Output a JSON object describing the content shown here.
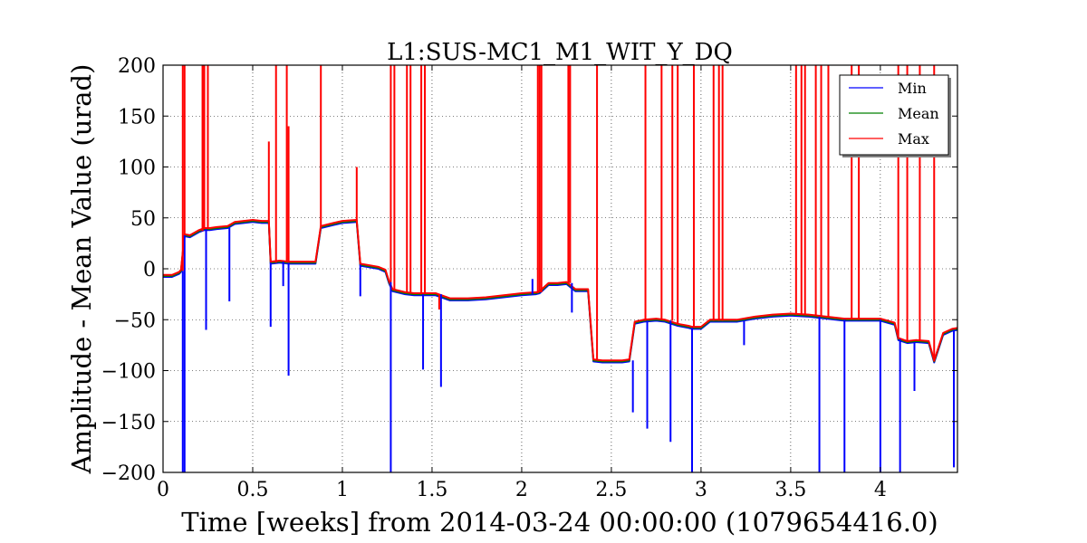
{
  "chart_data": {
    "type": "line",
    "title": "L1:SUS-MC1_M1_WIT_Y_DQ",
    "xlabel": "Time [weeks] from 2014-03-24 00:00:00 (1079654416.0)",
    "ylabel": "Amplitude - Mean Value (urad)",
    "xlim": [
      0,
      4.43
    ],
    "ylim": [
      -200,
      200
    ],
    "xticks": [
      0,
      0.5,
      1,
      1.5,
      2,
      2.5,
      3,
      3.5,
      4
    ],
    "xtick_labels": [
      "0",
      "0.5",
      "1",
      "1.5",
      "2",
      "2.5",
      "3",
      "3.5",
      "4"
    ],
    "yticks": [
      -200,
      -150,
      -100,
      -50,
      0,
      50,
      100,
      150,
      200
    ],
    "ytick_labels": [
      "−200",
      "−150",
      "−100",
      "−50",
      "0",
      "50",
      "100",
      "150",
      "200"
    ],
    "grid": true,
    "legend_position": "top-right",
    "series": [
      {
        "name": "Min",
        "color": "#0000ff",
        "x": [
          0,
          0.05,
          0.09,
          0.1,
          0.12,
          0.15,
          0.2,
          0.23,
          0.26,
          0.3,
          0.36,
          0.4,
          0.5,
          0.55,
          0.59,
          0.6,
          0.65,
          0.7,
          0.8,
          0.85,
          0.88,
          0.95,
          1.0,
          1.08,
          1.1,
          1.2,
          1.24,
          1.26,
          1.28,
          1.35,
          1.4,
          1.45,
          1.52,
          1.6,
          1.7,
          1.8,
          1.9,
          2.0,
          2.08,
          2.1,
          2.15,
          2.2,
          2.25,
          2.3,
          2.37,
          2.4,
          2.45,
          2.5,
          2.56,
          2.6,
          2.63,
          2.68,
          2.75,
          2.8,
          2.87,
          2.93,
          2.95,
          3.0,
          3.05,
          3.12,
          3.2,
          3.3,
          3.4,
          3.5,
          3.6,
          3.65,
          3.75,
          3.8,
          3.9,
          4.0,
          4.08,
          4.1,
          4.15,
          4.2,
          4.27,
          4.3,
          4.35,
          4.4,
          4.43
        ],
        "y": [
          -8,
          -8,
          -5,
          -3,
          32,
          31,
          36,
          38,
          38,
          39,
          40,
          44,
          46,
          45,
          45,
          5,
          6,
          5,
          5,
          5,
          40,
          43,
          45,
          46,
          3,
          0,
          -3,
          -14,
          -22,
          -25,
          -26,
          -26,
          -26,
          -31,
          -31,
          -30,
          -28,
          -26,
          -25,
          -24,
          -16,
          -16,
          -15,
          -22,
          -22,
          -91,
          -92,
          -92,
          -92,
          -91,
          -54,
          -52,
          -51,
          -52,
          -56,
          -58,
          -59,
          -59,
          -52,
          -52,
          -52,
          -49,
          -47,
          -46,
          -47,
          -48,
          -50,
          -51,
          -51,
          -51,
          -55,
          -70,
          -73,
          -72,
          -73,
          -92,
          -65,
          -61,
          -60
        ]
      },
      {
        "name": "Mean",
        "color": "#008000",
        "x": [
          0,
          0.05,
          0.09,
          0.1,
          0.12,
          0.15,
          0.2,
          0.23,
          0.26,
          0.3,
          0.36,
          0.4,
          0.5,
          0.55,
          0.59,
          0.6,
          0.65,
          0.7,
          0.8,
          0.85,
          0.88,
          0.95,
          1.0,
          1.08,
          1.1,
          1.2,
          1.24,
          1.26,
          1.28,
          1.35,
          1.4,
          1.45,
          1.52,
          1.6,
          1.7,
          1.8,
          1.9,
          2.0,
          2.08,
          2.1,
          2.15,
          2.2,
          2.25,
          2.3,
          2.37,
          2.4,
          2.45,
          2.5,
          2.56,
          2.6,
          2.63,
          2.68,
          2.75,
          2.8,
          2.87,
          2.93,
          2.95,
          3.0,
          3.05,
          3.12,
          3.2,
          3.3,
          3.4,
          3.5,
          3.6,
          3.65,
          3.75,
          3.8,
          3.9,
          4.0,
          4.08,
          4.1,
          4.15,
          4.2,
          4.27,
          4.3,
          4.35,
          4.4,
          4.43
        ],
        "y": [
          -7,
          -7,
          -4,
          -2,
          33,
          32,
          37,
          39,
          39,
          40,
          41,
          45,
          47,
          46,
          46,
          6,
          7,
          6,
          6,
          6,
          41,
          44,
          46,
          47,
          4,
          1,
          -2,
          -13,
          -21,
          -24,
          -25,
          -25,
          -25,
          -30,
          -30,
          -29,
          -27,
          -25,
          -24,
          -23,
          -15,
          -15,
          -14,
          -21,
          -21,
          -90,
          -91,
          -91,
          -91,
          -90,
          -53,
          -51,
          -50,
          -51,
          -55,
          -57,
          -58,
          -58,
          -51,
          -51,
          -51,
          -48,
          -46,
          -45,
          -46,
          -47,
          -49,
          -50,
          -50,
          -50,
          -54,
          -69,
          -72,
          -71,
          -72,
          -91,
          -64,
          -60,
          -59
        ]
      },
      {
        "name": "Max",
        "color": "#ff0000",
        "x": [
          0,
          0.05,
          0.09,
          0.1,
          0.12,
          0.15,
          0.2,
          0.23,
          0.26,
          0.3,
          0.36,
          0.4,
          0.5,
          0.55,
          0.59,
          0.6,
          0.65,
          0.7,
          0.8,
          0.85,
          0.88,
          0.95,
          1.0,
          1.08,
          1.1,
          1.2,
          1.24,
          1.26,
          1.28,
          1.35,
          1.4,
          1.45,
          1.52,
          1.6,
          1.7,
          1.8,
          1.9,
          2.0,
          2.08,
          2.1,
          2.15,
          2.2,
          2.25,
          2.3,
          2.37,
          2.4,
          2.45,
          2.5,
          2.56,
          2.6,
          2.63,
          2.68,
          2.75,
          2.8,
          2.87,
          2.93,
          2.95,
          3.0,
          3.05,
          3.12,
          3.2,
          3.3,
          3.4,
          3.5,
          3.6,
          3.65,
          3.75,
          3.8,
          3.9,
          4.0,
          4.08,
          4.1,
          4.15,
          4.2,
          4.27,
          4.3,
          4.35,
          4.4,
          4.43
        ],
        "y": [
          -6,
          -6,
          -3,
          -1,
          34,
          33,
          38,
          40,
          40,
          41,
          42,
          46,
          48,
          47,
          47,
          7,
          8,
          7,
          7,
          7,
          42,
          45,
          47,
          48,
          5,
          2,
          -1,
          -12,
          -20,
          -23,
          -24,
          -24,
          -24,
          -29,
          -29,
          -28,
          -26,
          -24,
          -23,
          -22,
          -14,
          -14,
          -13,
          -20,
          -20,
          -89,
          -90,
          -90,
          -90,
          -89,
          -52,
          -50,
          -49,
          -50,
          -54,
          -56,
          -57,
          -57,
          -50,
          -50,
          -50,
          -47,
          -45,
          -44,
          -45,
          -46,
          -48,
          -49,
          -49,
          -49,
          -53,
          -68,
          -71,
          -70,
          -71,
          -90,
          -63,
          -59,
          -58
        ]
      }
    ],
    "max_spikes": {
      "x": [
        0.11,
        0.12,
        0.22,
        0.23,
        0.25,
        0.59,
        0.63,
        0.69,
        0.7,
        0.88,
        1.08,
        1.27,
        1.29,
        1.36,
        1.38,
        1.44,
        1.46,
        1.54,
        2.09,
        2.1,
        2.11,
        2.26,
        2.27,
        2.42,
        2.69,
        2.78,
        2.84,
        2.87,
        2.96,
        3.07,
        3.1,
        3.12,
        3.53,
        3.56,
        3.58,
        3.64,
        3.67,
        3.71,
        3.84,
        3.88,
        4.1,
        4.15,
        4.22,
        4.3
      ],
      "y": [
        200,
        200,
        200,
        200,
        200,
        125,
        200,
        200,
        140,
        200,
        100,
        200,
        200,
        200,
        200,
        200,
        200,
        -40,
        200,
        200,
        200,
        200,
        200,
        200,
        200,
        200,
        200,
        200,
        200,
        200,
        200,
        200,
        200,
        200,
        200,
        200,
        200,
        200,
        200,
        200,
        200,
        200,
        200,
        200
      ]
    },
    "min_spikes": {
      "x": [
        0.11,
        0.12,
        0.24,
        0.37,
        0.6,
        0.67,
        0.7,
        1.1,
        1.27,
        1.45,
        1.55,
        2.06,
        2.28,
        2.62,
        2.7,
        2.83,
        2.95,
        3.24,
        3.66,
        3.8,
        4.0,
        4.11,
        4.19,
        4.41
      ],
      "y": [
        -200,
        -200,
        -60,
        -32,
        -57,
        -17,
        -105,
        -27,
        -200,
        -99,
        -116,
        -10,
        -43,
        -141,
        -157,
        -170,
        -200,
        -75,
        -200,
        -200,
        -200,
        -200,
        -120,
        -195
      ]
    }
  }
}
